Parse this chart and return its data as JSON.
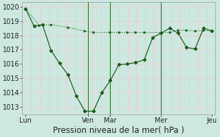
{
  "title": "",
  "xlabel": "Pression niveau de la mer( hPa )",
  "ylabel": "",
  "bg_color": "#cce8e0",
  "grid_color": "#e8d0d0",
  "line_color": "#1a5c1a",
  "day_sep_color": "#2d6e2d",
  "ylim": [
    1012.5,
    1020.3
  ],
  "yticks": [
    1013,
    1014,
    1015,
    1016,
    1017,
    1018,
    1019,
    1020
  ],
  "line1_x": [
    0,
    0.8,
    1.5,
    2.5,
    3.5,
    4.0,
    5.0,
    5.5,
    6.0,
    6.5,
    7.0,
    8.5,
    9.0,
    9.5,
    10.0,
    10.5,
    11.0
  ],
  "line1_y": [
    1019.85,
    1018.7,
    1018.75,
    1018.55,
    1018.3,
    1018.2,
    1018.2,
    1018.2,
    1018.2,
    1018.2,
    1018.2,
    1018.2,
    1018.35,
    1018.35,
    1018.3,
    1018.35,
    1018.3
  ],
  "line2_x": [
    0,
    0.5,
    1.0,
    1.5,
    2.0,
    2.5,
    3.0,
    3.5,
    4.0,
    4.5,
    5.0,
    5.5,
    6.0,
    6.5,
    7.0,
    7.5,
    8.0,
    8.5,
    9.0,
    9.5,
    10.0,
    10.5,
    11.0
  ],
  "line2_y": [
    1019.85,
    1018.65,
    1018.75,
    1016.95,
    1016.05,
    1015.25,
    1013.75,
    1012.7,
    1012.7,
    1014.0,
    1014.85,
    1015.95,
    1016.0,
    1016.1,
    1016.3,
    1017.85,
    1018.15,
    1018.5,
    1018.15,
    1017.15,
    1017.05,
    1018.5,
    1018.3
  ],
  "vline_positions": [
    3.7,
    5.0,
    8.0
  ],
  "day_labels": [
    "Lun",
    "Ven",
    "Mar",
    "Mer",
    "Jeu"
  ],
  "day_positions": [
    0,
    3.7,
    5.0,
    8.0,
    11.0
  ],
  "xlabel_fontsize": 8.5,
  "tick_fontsize": 7,
  "figsize": [
    3.2,
    2.0
  ],
  "dpi": 100
}
